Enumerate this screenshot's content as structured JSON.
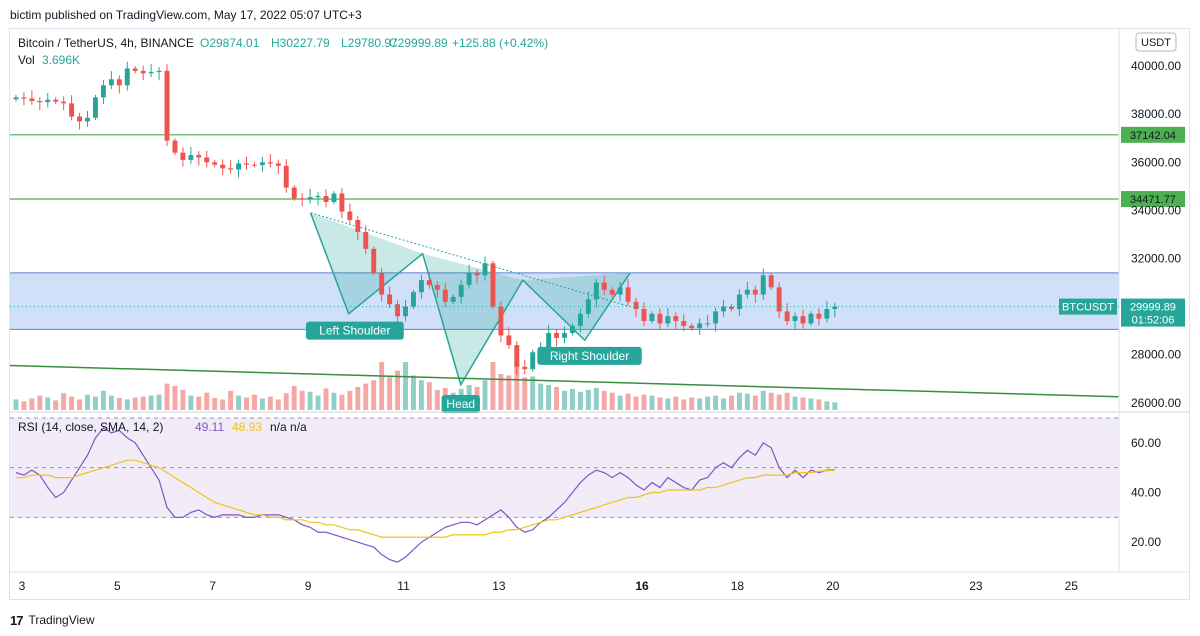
{
  "header": {
    "publisher_line": "bictim published on TradingView.com, May 17, 2022 05:07 UTC+3"
  },
  "legend": {
    "symbol": "Bitcoin / TetherUS, 4h, BINANCE",
    "open": "O29874.01",
    "high": "H30227.79",
    "low": "L29780.97",
    "close": "C29999.89",
    "change": "+125.88 (+0.42%)",
    "vol_label": "Vol",
    "vol_value": "3.696K"
  },
  "currency_button": "USDT",
  "footer": {
    "logo": "17",
    "brand": "TradingView"
  },
  "colors": {
    "up": "#26a69a",
    "down": "#ef5350",
    "vol_up": "#8fcfc8",
    "vol_down": "#f4a7a5",
    "zone": "#c8daf7",
    "hline": "#4caf50",
    "trend": "#388e3c",
    "rsi": "#7e57c2",
    "rsi_ma": "#f0c419",
    "pattern": "#26a69a"
  },
  "chart_data": {
    "type": "candlestick",
    "symbol": "BTCUSDT",
    "interval": "4h",
    "y_axis": {
      "ticks": [
        26000,
        28000,
        30000,
        32000,
        34000,
        36000,
        38000,
        40000
      ],
      "tick_labels": [
        "26000.00",
        "28000.00",
        "30000.00",
        "32000.00",
        "34000.00",
        "36000.00",
        "38000.00",
        "40000.00"
      ],
      "range": [
        25700,
        41500
      ]
    },
    "x_axis": {
      "tick_labels": [
        "3",
        "5",
        "7",
        "9",
        "11",
        "13",
        "16",
        "18",
        "20",
        "23",
        "25"
      ],
      "tick_days": [
        3,
        5,
        7,
        9,
        11,
        13,
        16,
        18,
        20,
        23,
        25
      ],
      "range_days": [
        2.75,
        26.0
      ],
      "bold_labels": [
        "16"
      ]
    },
    "candles": {
      "start_day": 2.875,
      "step_days": 0.16667,
      "close": [
        38700,
        38650,
        38550,
        38500,
        38600,
        38520,
        38450,
        37900,
        37700,
        37850,
        38700,
        39200,
        39450,
        39200,
        39900,
        39800,
        39700,
        39750,
        39800,
        36900,
        36400,
        36100,
        36300,
        36200,
        36000,
        35900,
        35750,
        35700,
        35950,
        35900,
        35880,
        36000,
        35950,
        35850,
        34950,
        34500,
        34450,
        34550,
        34600,
        34350,
        34700,
        33950,
        33600,
        33100,
        32400,
        31400,
        30500,
        30100,
        29600,
        30000,
        30600,
        31100,
        30900,
        30700,
        30200,
        30400,
        30900,
        31400,
        31300,
        31800,
        30000,
        28800,
        28400,
        27500,
        27400,
        28100,
        28300,
        28900,
        28700,
        28900,
        29200,
        29700,
        30300,
        31000,
        30700,
        30500,
        30800,
        30200,
        29900,
        29400,
        29700,
        29300,
        29600,
        29400,
        29200,
        29100,
        29300,
        29300,
        29800,
        30000,
        29900,
        30500,
        30700,
        30500,
        31300,
        30800,
        29800,
        29400,
        29600,
        29300,
        29700,
        29500,
        29900,
        30000
      ]
    },
    "volume_bars": [
      0.22,
      0.18,
      0.24,
      0.3,
      0.26,
      0.2,
      0.35,
      0.28,
      0.22,
      0.32,
      0.28,
      0.4,
      0.3,
      0.25,
      0.22,
      0.26,
      0.28,
      0.3,
      0.32,
      0.55,
      0.5,
      0.42,
      0.3,
      0.28,
      0.36,
      0.25,
      0.22,
      0.4,
      0.3,
      0.26,
      0.32,
      0.24,
      0.28,
      0.22,
      0.35,
      0.5,
      0.4,
      0.38,
      0.3,
      0.45,
      0.36,
      0.32,
      0.4,
      0.48,
      0.55,
      0.62,
      1.0,
      0.68,
      0.82,
      1.0,
      0.72,
      0.62,
      0.58,
      0.42,
      0.46,
      0.36,
      0.44,
      0.52,
      0.48,
      0.62,
      1.0,
      0.75,
      0.72,
      1.0,
      0.68,
      0.7,
      0.55,
      0.52,
      0.48,
      0.4,
      0.44,
      0.38,
      0.42,
      0.46,
      0.4,
      0.36,
      0.3,
      0.34,
      0.28,
      0.32,
      0.3,
      0.26,
      0.24,
      0.28,
      0.22,
      0.26,
      0.24,
      0.28,
      0.3,
      0.24,
      0.3,
      0.36,
      0.34,
      0.3,
      0.4,
      0.36,
      0.32,
      0.36,
      0.28,
      0.26,
      0.24,
      0.22,
      0.18,
      0.16
    ],
    "horizontal_levels": [
      {
        "price": 37142.04,
        "label": "37142.04"
      },
      {
        "price": 34471.77,
        "label": "34471.77"
      }
    ],
    "zone": {
      "top": 31400,
      "bottom": 29050
    },
    "trend_line": {
      "start_day": 2.75,
      "start_price": 27550,
      "end_day": 26.0,
      "end_price": 26250
    },
    "pattern_points": [
      {
        "day": 9.05,
        "price": 33900
      },
      {
        "day": 9.85,
        "price": 29700
      },
      {
        "day": 11.4,
        "price": 32200
      },
      {
        "day": 12.2,
        "price": 26750
      },
      {
        "day": 13.5,
        "price": 31100
      },
      {
        "day": 14.8,
        "price": 28600
      },
      {
        "day": 15.75,
        "price": 31400
      }
    ],
    "neckline": [
      {
        "day": 9.05,
        "price": 33900
      },
      {
        "day": 15.75,
        "price": 30000
      }
    ],
    "annotations": [
      {
        "text": "Left Shoulder",
        "day": 9.98,
        "price": 29000
      },
      {
        "text": "Head",
        "day": 12.2,
        "price": 25950
      },
      {
        "text": "Right Shoulder",
        "day": 14.9,
        "price": 27950
      }
    ],
    "last_price": {
      "label": "BTCUSDT",
      "value": "29999.89",
      "countdown": "01:52:06",
      "price": 29999.89
    },
    "rsi": {
      "legend": "RSI (14, close, SMA, 14, 2)",
      "value": "49.11",
      "ma_value": "48.93",
      "extra": "n/a  n/a",
      "y_ticks": [
        20,
        40,
        60
      ],
      "y_tick_labels": [
        "20.00",
        "40.00",
        "60.00"
      ],
      "range": [
        8,
        72
      ],
      "upper_band": 70,
      "middle_band": 50,
      "lower_band": 30,
      "values": [
        48,
        47,
        49,
        47,
        42,
        38,
        40,
        45,
        50,
        55,
        62,
        66,
        64,
        65,
        62,
        60,
        55,
        50,
        45,
        34,
        30,
        30,
        32,
        33,
        31,
        30,
        31,
        31,
        31,
        30,
        30,
        31,
        31,
        31,
        30,
        29,
        27,
        26,
        24,
        24,
        23,
        22,
        21,
        20,
        19,
        18,
        15,
        13,
        12,
        14,
        17,
        20,
        22,
        24,
        26,
        27,
        28,
        28,
        27,
        29,
        31,
        33,
        30,
        26,
        24,
        25,
        28,
        30,
        33,
        36,
        40,
        44,
        47,
        49,
        48,
        46,
        48,
        46,
        43,
        41,
        44,
        42,
        46,
        44,
        42,
        41,
        45,
        46,
        50,
        52,
        50,
        54,
        57,
        55,
        60,
        58,
        50,
        46,
        49,
        46,
        49,
        48,
        49,
        49.11
      ],
      "ma_values": [
        46,
        46,
        47,
        47,
        47,
        46,
        46,
        46,
        47,
        48,
        49,
        50,
        51,
        52,
        53,
        53,
        52,
        51,
        50,
        48,
        46,
        44,
        42,
        40,
        38,
        36,
        35,
        34,
        33,
        32,
        31,
        31,
        30,
        30,
        29,
        29,
        29,
        28,
        28,
        27,
        27,
        26,
        25,
        25,
        24,
        23,
        22,
        22,
        22,
        22,
        22,
        22,
        22,
        22,
        22,
        23,
        23,
        23,
        23,
        23,
        24,
        24,
        25,
        25,
        26,
        27,
        28,
        29,
        29,
        30,
        31,
        32,
        33,
        34,
        35,
        36,
        37,
        38,
        38,
        39,
        40,
        40,
        41,
        41,
        41,
        41,
        41,
        42,
        42,
        43,
        44,
        45,
        46,
        46,
        47,
        47,
        47,
        47,
        48,
        48,
        48,
        48.5,
        48.8,
        48.93
      ]
    }
  }
}
